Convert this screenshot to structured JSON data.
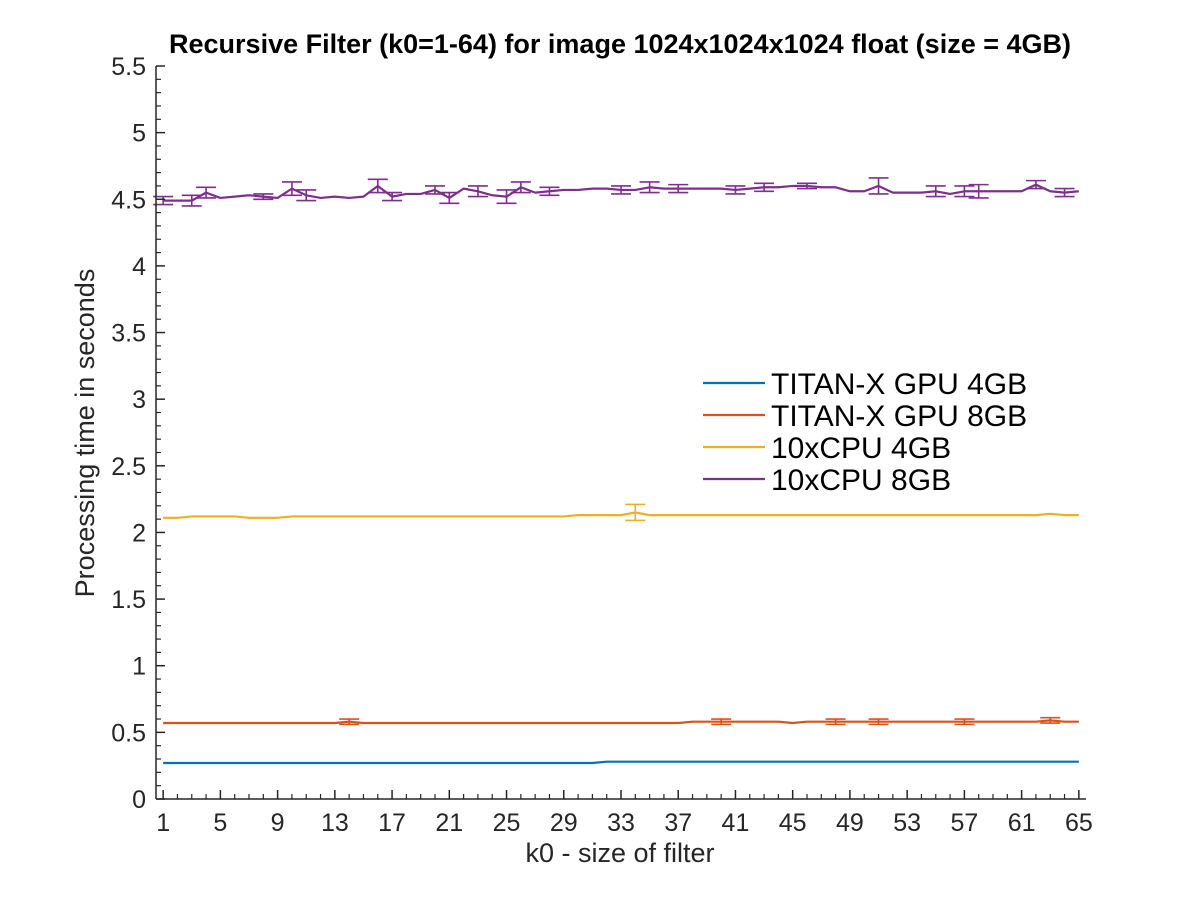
{
  "chart_data": {
    "type": "line",
    "title": "Recursive Filter (k0=1-64) for image 1024x1024x1024 float (size = 4GB)",
    "xlabel": "k0 - size of filter",
    "ylabel": "Processing time in seconds",
    "xlim": [
      0.5,
      65.5
    ],
    "ylim": [
      0,
      5.5
    ],
    "xticks": [
      1,
      5,
      9,
      13,
      17,
      21,
      25,
      29,
      33,
      37,
      41,
      45,
      49,
      53,
      57,
      61,
      65
    ],
    "xtick_labels": [
      "1",
      "5",
      "9",
      "13",
      "17",
      "21",
      "25",
      "29",
      "33",
      "37",
      "41",
      "45",
      "49",
      "53",
      "57",
      "61",
      "65"
    ],
    "yticks": [
      0,
      0.5,
      1,
      1.5,
      2,
      2.5,
      3,
      3.5,
      4,
      4.5,
      5,
      5.5
    ],
    "ytick_labels": [
      "0",
      "0.5",
      "1",
      "1.5",
      "2",
      "2.5",
      "3",
      "3.5",
      "4",
      "4.5",
      "5",
      "5.5"
    ],
    "grid": false,
    "legend_position": "center-right",
    "x_range": [
      1,
      65
    ],
    "series": [
      {
        "name": "TITAN-X GPU 4GB",
        "color": "#0072BD",
        "values": [
          0.27,
          0.27,
          0.27,
          0.27,
          0.27,
          0.27,
          0.27,
          0.27,
          0.27,
          0.27,
          0.27,
          0.27,
          0.27,
          0.27,
          0.27,
          0.27,
          0.27,
          0.27,
          0.27,
          0.27,
          0.27,
          0.27,
          0.27,
          0.27,
          0.27,
          0.27,
          0.27,
          0.27,
          0.27,
          0.27,
          0.27,
          0.28,
          0.28,
          0.28,
          0.28,
          0.28,
          0.28,
          0.28,
          0.28,
          0.28,
          0.28,
          0.28,
          0.28,
          0.28,
          0.28,
          0.28,
          0.28,
          0.28,
          0.28,
          0.28,
          0.28,
          0.28,
          0.28,
          0.28,
          0.28,
          0.28,
          0.28,
          0.28,
          0.28,
          0.28,
          0.28,
          0.28,
          0.28,
          0.28,
          0.28
        ],
        "errors": []
      },
      {
        "name": "TITAN-X GPU 8GB",
        "color": "#D95319",
        "values": [
          0.57,
          0.57,
          0.57,
          0.57,
          0.57,
          0.57,
          0.57,
          0.57,
          0.57,
          0.57,
          0.57,
          0.57,
          0.57,
          0.58,
          0.57,
          0.57,
          0.57,
          0.57,
          0.57,
          0.57,
          0.57,
          0.57,
          0.57,
          0.57,
          0.57,
          0.57,
          0.57,
          0.57,
          0.57,
          0.57,
          0.57,
          0.57,
          0.57,
          0.57,
          0.57,
          0.57,
          0.57,
          0.58,
          0.58,
          0.58,
          0.58,
          0.58,
          0.58,
          0.58,
          0.57,
          0.58,
          0.58,
          0.58,
          0.58,
          0.58,
          0.58,
          0.58,
          0.58,
          0.58,
          0.58,
          0.58,
          0.58,
          0.58,
          0.58,
          0.58,
          0.58,
          0.58,
          0.59,
          0.58,
          0.58
        ],
        "errors": [
          [
            14,
            0.02
          ],
          [
            40,
            0.02
          ],
          [
            48,
            0.02
          ],
          [
            51,
            0.02
          ],
          [
            57,
            0.02
          ],
          [
            63,
            0.02
          ]
        ]
      },
      {
        "name": "10xCPU 4GB",
        "color": "#EDB120",
        "values": [
          2.11,
          2.11,
          2.12,
          2.12,
          2.12,
          2.12,
          2.11,
          2.11,
          2.11,
          2.12,
          2.12,
          2.12,
          2.12,
          2.12,
          2.12,
          2.12,
          2.12,
          2.12,
          2.12,
          2.12,
          2.12,
          2.12,
          2.12,
          2.12,
          2.12,
          2.12,
          2.12,
          2.12,
          2.12,
          2.13,
          2.13,
          2.13,
          2.13,
          2.15,
          2.13,
          2.13,
          2.13,
          2.13,
          2.13,
          2.13,
          2.13,
          2.13,
          2.13,
          2.13,
          2.13,
          2.13,
          2.13,
          2.13,
          2.13,
          2.13,
          2.13,
          2.13,
          2.13,
          2.13,
          2.13,
          2.13,
          2.13,
          2.13,
          2.13,
          2.13,
          2.13,
          2.13,
          2.14,
          2.13,
          2.13
        ],
        "errors": [
          [
            34,
            0.06
          ]
        ]
      },
      {
        "name": "10xCPU 8GB",
        "color": "#7E2F8E",
        "values": [
          4.49,
          4.49,
          4.49,
          4.55,
          4.51,
          4.52,
          4.53,
          4.52,
          4.51,
          4.58,
          4.53,
          4.51,
          4.52,
          4.51,
          4.52,
          4.6,
          4.52,
          4.54,
          4.54,
          4.57,
          4.51,
          4.58,
          4.56,
          4.53,
          4.52,
          4.59,
          4.55,
          4.56,
          4.57,
          4.57,
          4.58,
          4.58,
          4.57,
          4.57,
          4.59,
          4.58,
          4.58,
          4.58,
          4.58,
          4.58,
          4.57,
          4.58,
          4.59,
          4.59,
          4.6,
          4.6,
          4.59,
          4.59,
          4.56,
          4.56,
          4.6,
          4.55,
          4.55,
          4.55,
          4.56,
          4.54,
          4.56,
          4.56,
          4.56,
          4.56,
          4.56,
          4.61,
          4.56,
          4.55,
          4.56
        ],
        "errors": [
          [
            1,
            0.03
          ],
          [
            3,
            0.04
          ],
          [
            4,
            0.04
          ],
          [
            8,
            0.02
          ],
          [
            10,
            0.05
          ],
          [
            11,
            0.04
          ],
          [
            16,
            0.05
          ],
          [
            17,
            0.03
          ],
          [
            20,
            0.03
          ],
          [
            21,
            0.04
          ],
          [
            23,
            0.04
          ],
          [
            25,
            0.05
          ],
          [
            26,
            0.04
          ],
          [
            28,
            0.03
          ],
          [
            33,
            0.03
          ],
          [
            35,
            0.04
          ],
          [
            37,
            0.03
          ],
          [
            41,
            0.03
          ],
          [
            43,
            0.03
          ],
          [
            46,
            0.02
          ],
          [
            51,
            0.06
          ],
          [
            55,
            0.04
          ],
          [
            57,
            0.04
          ],
          [
            58,
            0.05
          ],
          [
            62,
            0.03
          ],
          [
            64,
            0.03
          ]
        ]
      }
    ]
  }
}
